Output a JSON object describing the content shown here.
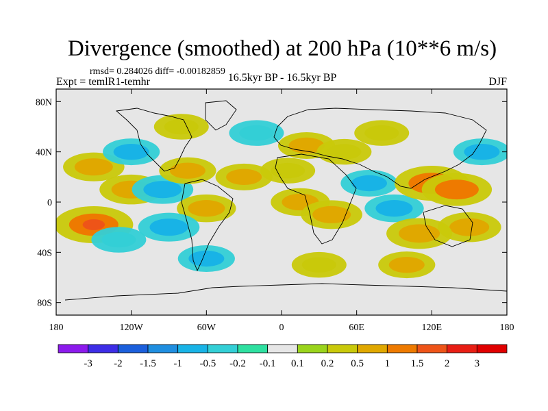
{
  "chart_data": {
    "type": "heatmap",
    "title": "Divergence (smoothed) at 200 hPa (10**6 m/s)",
    "stats": "rmsd= 0.284026 diff= -0.00182859",
    "left_label": "Expt = temlR1-temhr",
    "center_label": "16.5kyr BP - 16.5kyr BP",
    "right_label": "DJF",
    "x_ticks": [
      "180",
      "120W",
      "60W",
      "0",
      "60E",
      "120E",
      "180"
    ],
    "x_tick_values": [
      -180,
      -120,
      -60,
      0,
      60,
      120,
      180
    ],
    "y_ticks": [
      "80N",
      "40N",
      "0",
      "40S",
      "80S"
    ],
    "y_tick_values": [
      80,
      40,
      0,
      -40,
      -80
    ],
    "xlim": [
      -180,
      180
    ],
    "ylim": [
      -90,
      90
    ],
    "colorbar": {
      "labels": [
        "-3",
        "-2",
        "-1.5",
        "-1",
        "-0.5",
        "-0.2",
        "-0.1",
        "0.1",
        "0.2",
        "0.5",
        "1",
        "1.5",
        "2",
        "3"
      ],
      "colors": [
        "#8c1aec",
        "#3d2de6",
        "#1b5fdc",
        "#1f8ee0",
        "#18b3e6",
        "#33cfd6",
        "#2ee0a0",
        "#e6e6e6",
        "#9ad41c",
        "#c9c90a",
        "#e0a800",
        "#ee7a00",
        "#ee5418",
        "#e81e14",
        "#e00000"
      ]
    },
    "anomalies": [
      {
        "lon": -150,
        "lat": 28,
        "value": 0.8
      },
      {
        "lon": -120,
        "lat": 10,
        "value": 0.9
      },
      {
        "lon": -150,
        "lat": -18,
        "value": 1.6
      },
      {
        "lon": -95,
        "lat": 10,
        "value": -0.8
      },
      {
        "lon": -75,
        "lat": 25,
        "value": 0.6
      },
      {
        "lon": -120,
        "lat": 40,
        "value": -0.6
      },
      {
        "lon": -60,
        "lat": -5,
        "value": 0.7
      },
      {
        "lon": -30,
        "lat": 20,
        "value": 0.6
      },
      {
        "lon": -20,
        "lat": 55,
        "value": -0.5
      },
      {
        "lon": -80,
        "lat": 60,
        "value": 0.5
      },
      {
        "lon": 20,
        "lat": 45,
        "value": 0.6
      },
      {
        "lon": 5,
        "lat": 25,
        "value": 0.5
      },
      {
        "lon": 15,
        "lat": 0,
        "value": 0.7
      },
      {
        "lon": 40,
        "lat": -10,
        "value": 0.8
      },
      {
        "lon": 50,
        "lat": 40,
        "value": 0.5
      },
      {
        "lon": 80,
        "lat": 55,
        "value": 0.5
      },
      {
        "lon": 70,
        "lat": 15,
        "value": -0.6
      },
      {
        "lon": 90,
        "lat": -5,
        "value": -0.7
      },
      {
        "lon": 120,
        "lat": 15,
        "value": 1.4
      },
      {
        "lon": 140,
        "lat": 10,
        "value": 1.2
      },
      {
        "lon": 150,
        "lat": -20,
        "value": 0.9
      },
      {
        "lon": 110,
        "lat": -25,
        "value": 1.0
      },
      {
        "lon": 160,
        "lat": 40,
        "value": -0.6
      },
      {
        "lon": -60,
        "lat": -45,
        "value": -0.6
      },
      {
        "lon": 30,
        "lat": -50,
        "value": 0.5
      },
      {
        "lon": 100,
        "lat": -50,
        "value": 0.6
      },
      {
        "lon": -130,
        "lat": -30,
        "value": -0.5
      },
      {
        "lon": -90,
        "lat": -20,
        "value": -0.8
      }
    ]
  }
}
